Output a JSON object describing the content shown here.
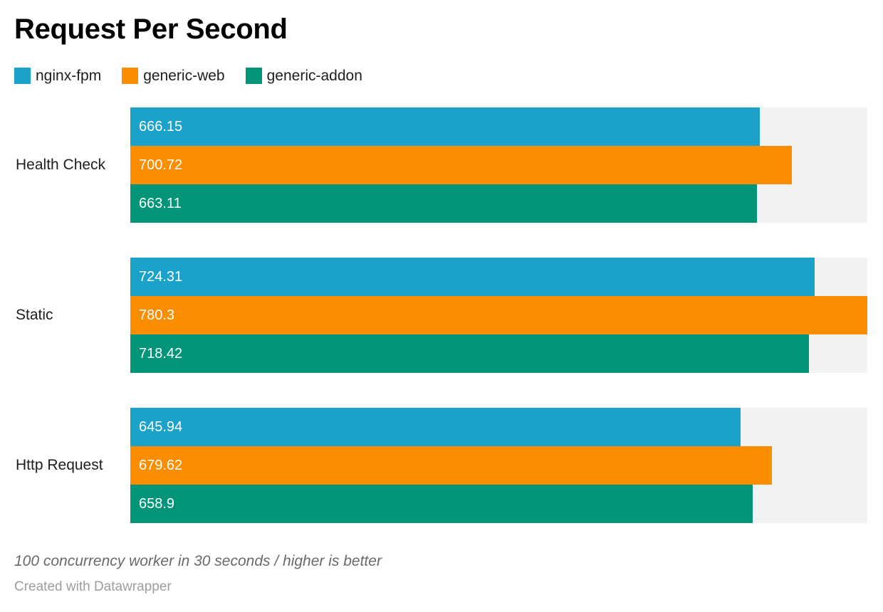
{
  "title": "Request Per Second",
  "footer": {
    "note": "100 concurrency worker in 30 seconds / higher is better",
    "credit": "Created with Datawrapper"
  },
  "colors": {
    "nginx_fpm": "#1ba2ca",
    "generic_web": "#fb8d00",
    "generic_addon": "#009478",
    "track_background": "#f2f2f2",
    "value_label": "#ffffff",
    "text": "#1d1d1d"
  },
  "chart_data": {
    "type": "bar",
    "orientation": "horizontal",
    "title": "Request Per Second",
    "categories": [
      "Health Check",
      "Static",
      "Http Request"
    ],
    "series": [
      {
        "name": "nginx-fpm",
        "color": "#1ba2ca",
        "values": [
          666.15,
          724.31,
          645.94
        ]
      },
      {
        "name": "generic-web",
        "color": "#fb8d00",
        "values": [
          700.72,
          780.3,
          679.62
        ]
      },
      {
        "name": "generic-addon",
        "color": "#009478",
        "values": [
          663.11,
          718.42,
          658.9
        ]
      }
    ],
    "xlim": [
      0,
      780.3
    ],
    "grid": false,
    "legend_position": "top",
    "value_labels": "inside-start",
    "note": "100 concurrency worker in 30 seconds / higher is better",
    "credit": "Created with Datawrapper"
  }
}
